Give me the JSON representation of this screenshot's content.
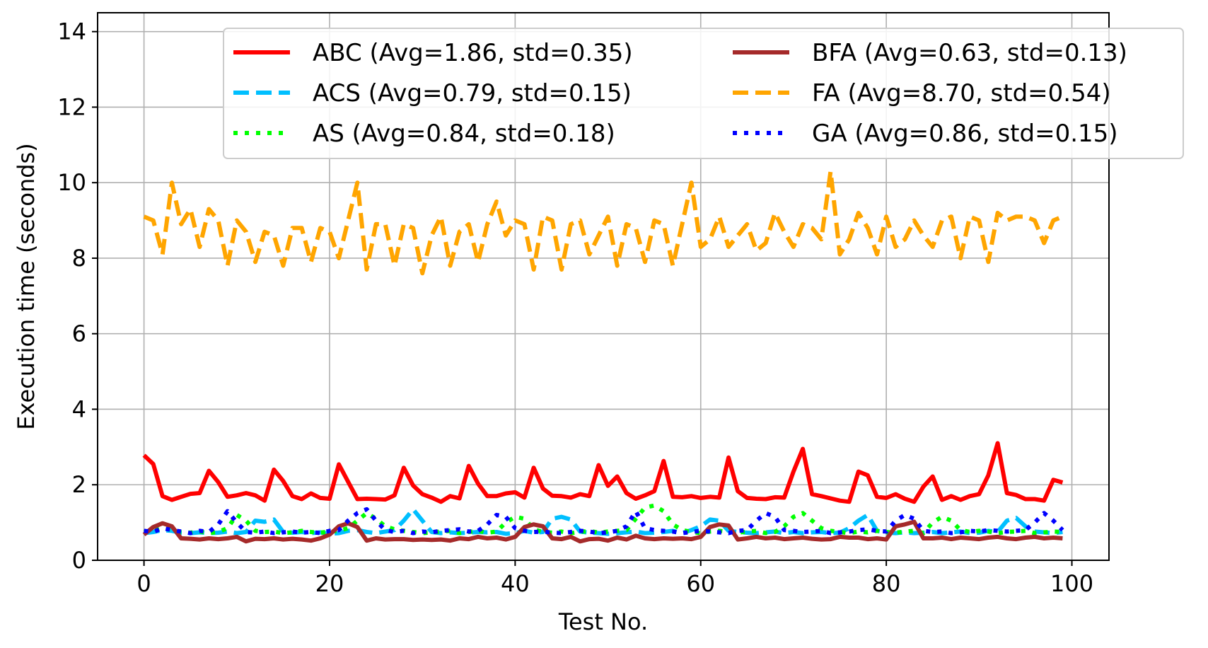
{
  "chart_data": {
    "type": "line",
    "title": "",
    "xlabel": "Test No.",
    "ylabel": "Execution time (seconds)",
    "xlim": [
      -5,
      104
    ],
    "ylim": [
      0,
      14.5
    ],
    "xticks": [
      0,
      20,
      40,
      60,
      80,
      100
    ],
    "yticks": [
      0,
      2,
      4,
      6,
      8,
      10,
      12,
      14
    ],
    "grid": true,
    "legend_position": "top-right",
    "legend_columns": 2,
    "x": [
      0,
      1,
      2,
      3,
      4,
      5,
      6,
      7,
      8,
      9,
      10,
      11,
      12,
      13,
      14,
      15,
      16,
      17,
      18,
      19,
      20,
      21,
      22,
      23,
      24,
      25,
      26,
      27,
      28,
      29,
      30,
      31,
      32,
      33,
      34,
      35,
      36,
      37,
      38,
      39,
      40,
      41,
      42,
      43,
      44,
      45,
      46,
      47,
      48,
      49,
      50,
      51,
      52,
      53,
      54,
      55,
      56,
      57,
      58,
      59,
      60,
      61,
      62,
      63,
      64,
      65,
      66,
      67,
      68,
      69,
      70,
      71,
      72,
      73,
      74,
      75,
      76,
      77,
      78,
      79,
      80,
      81,
      82,
      83,
      84,
      85,
      86,
      87,
      88,
      89,
      90,
      91,
      92,
      93,
      94,
      95,
      96,
      97,
      98,
      99
    ],
    "series": [
      {
        "name": "ABC (Avg=1.86, std=0.35)",
        "color": "#ff0000",
        "style": "solid",
        "values": [
          2.78,
          2.55,
          1.7,
          1.6,
          1.68,
          1.76,
          1.78,
          2.37,
          2.07,
          1.68,
          1.72,
          1.78,
          1.72,
          1.58,
          2.4,
          2.1,
          1.7,
          1.62,
          1.77,
          1.65,
          1.63,
          2.54,
          2.08,
          1.62,
          1.63,
          1.62,
          1.61,
          1.72,
          2.45,
          1.98,
          1.75,
          1.66,
          1.55,
          1.7,
          1.64,
          2.5,
          2.03,
          1.7,
          1.7,
          1.77,
          1.8,
          1.66,
          2.45,
          1.9,
          1.71,
          1.7,
          1.66,
          1.75,
          1.7,
          2.52,
          1.97,
          2.22,
          1.78,
          1.63,
          1.72,
          1.83,
          2.63,
          1.68,
          1.67,
          1.7,
          1.65,
          1.68,
          1.66,
          2.72,
          1.83,
          1.65,
          1.63,
          1.62,
          1.67,
          1.66,
          2.35,
          2.95,
          1.75,
          1.7,
          1.64,
          1.58,
          1.55,
          2.35,
          2.25,
          1.68,
          1.65,
          1.75,
          1.63,
          1.55,
          1.95,
          2.22,
          1.6,
          1.7,
          1.6,
          1.7,
          1.75,
          2.25,
          3.1,
          1.78,
          1.73,
          1.62,
          1.62,
          1.58,
          2.13,
          2.06
        ]
      },
      {
        "name": "ACS (Avg=0.79, std=0.15)",
        "color": "#00bfff",
        "style": "dashed",
        "values": [
          0.72,
          0.75,
          0.8,
          0.78,
          0.73,
          0.72,
          0.74,
          0.72,
          0.73,
          0.76,
          0.72,
          0.75,
          1.05,
          1.02,
          1.08,
          0.75,
          0.73,
          0.75,
          0.72,
          0.74,
          0.7,
          0.72,
          0.78,
          0.8,
          0.75,
          0.72,
          0.76,
          0.8,
          1.05,
          1.35,
          1.05,
          0.75,
          0.72,
          0.74,
          0.72,
          0.73,
          0.75,
          0.74,
          0.75,
          0.7,
          0.72,
          0.78,
          0.73,
          0.75,
          1.1,
          1.15,
          1.08,
          0.76,
          0.73,
          0.72,
          0.7,
          0.72,
          0.74,
          0.76,
          0.72,
          0.73,
          0.75,
          0.78,
          0.72,
          0.8,
          0.9,
          1.08,
          1.05,
          0.78,
          0.75,
          0.73,
          0.72,
          0.74,
          0.76,
          0.72,
          0.75,
          0.72,
          0.74,
          0.75,
          0.72,
          0.73,
          0.85,
          1.05,
          1.2,
          0.78,
          0.73,
          0.72,
          0.74,
          0.72,
          0.73,
          0.75,
          0.72,
          0.74,
          0.76,
          0.72,
          0.73,
          0.78,
          0.75,
          1.05,
          1.12,
          0.9,
          0.76,
          0.74,
          0.72,
          0.75
        ]
      },
      {
        "name": "AS (Avg=0.84, std=0.18)",
        "color": "#00ff00",
        "style": "dotted",
        "values": [
          0.75,
          0.78,
          0.85,
          0.8,
          0.75,
          0.73,
          0.76,
          0.72,
          0.75,
          0.85,
          1.2,
          1.05,
          0.78,
          0.75,
          0.76,
          0.72,
          0.74,
          0.78,
          0.75,
          0.73,
          0.76,
          0.78,
          0.85,
          1.05,
          1.25,
          1.1,
          0.9,
          0.82,
          0.78,
          0.75,
          0.72,
          0.74,
          0.76,
          0.78,
          0.72,
          0.75,
          0.78,
          0.73,
          0.76,
          1.0,
          1.15,
          1.1,
          0.82,
          0.75,
          0.73,
          0.76,
          0.72,
          0.75,
          0.78,
          0.73,
          0.76,
          0.78,
          0.8,
          1.1,
          1.4,
          1.45,
          1.3,
          0.95,
          0.8,
          0.75,
          0.72,
          0.76,
          0.78,
          0.75,
          0.73,
          0.76,
          0.78,
          0.72,
          0.75,
          0.9,
          1.15,
          1.25,
          1.05,
          0.85,
          0.78,
          0.75,
          0.72,
          0.76,
          0.74,
          0.78,
          0.75,
          0.73,
          0.76,
          0.78,
          0.72,
          1.0,
          1.15,
          1.05,
          0.8,
          0.75,
          0.78,
          0.76,
          0.72,
          0.75,
          0.76,
          0.78,
          0.72,
          0.74,
          0.76,
          0.75
        ]
      },
      {
        "name": "BFA (Avg=0.63, std=0.13)",
        "color": "#a52a2a",
        "style": "solid",
        "values": [
          0.68,
          0.88,
          0.98,
          0.9,
          0.58,
          0.57,
          0.55,
          0.58,
          0.56,
          0.58,
          0.62,
          0.5,
          0.57,
          0.56,
          0.58,
          0.55,
          0.57,
          0.55,
          0.52,
          0.58,
          0.68,
          0.9,
          0.98,
          0.88,
          0.52,
          0.58,
          0.55,
          0.56,
          0.56,
          0.54,
          0.55,
          0.54,
          0.55,
          0.52,
          0.58,
          0.56,
          0.62,
          0.58,
          0.6,
          0.55,
          0.62,
          0.88,
          0.95,
          0.9,
          0.58,
          0.56,
          0.62,
          0.5,
          0.56,
          0.57,
          0.52,
          0.6,
          0.55,
          0.65,
          0.58,
          0.56,
          0.58,
          0.57,
          0.58,
          0.56,
          0.62,
          0.88,
          0.95,
          0.92,
          0.55,
          0.58,
          0.62,
          0.58,
          0.6,
          0.56,
          0.58,
          0.6,
          0.57,
          0.55,
          0.56,
          0.62,
          0.6,
          0.6,
          0.56,
          0.58,
          0.55,
          0.9,
          0.95,
          1.02,
          0.58,
          0.58,
          0.6,
          0.56,
          0.6,
          0.58,
          0.56,
          0.6,
          0.62,
          0.58,
          0.56,
          0.6,
          0.62,
          0.58,
          0.6,
          0.58
        ]
      },
      {
        "name": "FA (Avg=8.70, std=0.54)",
        "color": "#ffa500",
        "style": "dashed",
        "values": [
          9.1,
          9.0,
          8.1,
          10.0,
          8.9,
          9.3,
          8.3,
          9.3,
          9.0,
          7.8,
          9.0,
          8.7,
          7.9,
          8.7,
          8.6,
          7.8,
          8.8,
          8.8,
          7.9,
          8.8,
          8.7,
          8.0,
          9.0,
          10.0,
          7.7,
          8.9,
          8.9,
          7.8,
          8.9,
          8.8,
          7.6,
          8.6,
          9.1,
          7.8,
          8.7,
          8.9,
          7.9,
          8.9,
          9.5,
          8.6,
          9.0,
          8.9,
          7.7,
          9.1,
          9.0,
          7.7,
          8.9,
          9.0,
          8.1,
          8.6,
          9.1,
          7.8,
          8.9,
          8.8,
          7.9,
          9.0,
          8.9,
          7.8,
          8.9,
          10.0,
          8.3,
          8.5,
          9.1,
          8.3,
          8.6,
          8.9,
          8.2,
          8.4,
          9.2,
          8.7,
          8.3,
          8.9,
          8.8,
          8.5,
          10.3,
          8.1,
          8.5,
          9.2,
          8.8,
          8.1,
          9.1,
          8.3,
          8.5,
          9.0,
          8.6,
          8.3,
          9.0,
          9.1,
          8.0,
          9.1,
          9.0,
          7.9,
          9.2,
          9.0,
          9.1,
          9.1,
          9.0,
          8.4,
          9.0,
          9.1
        ]
      },
      {
        "name": "GA (Avg=0.86, std=0.15)",
        "color": "#0000ff",
        "style": "dotted",
        "values": [
          0.78,
          0.75,
          0.85,
          0.8,
          0.76,
          0.72,
          0.78,
          0.75,
          0.95,
          1.3,
          1.0,
          0.75,
          0.73,
          0.76,
          0.72,
          0.74,
          0.76,
          0.73,
          0.75,
          0.72,
          0.78,
          0.8,
          1.05,
          1.25,
          1.35,
          1.05,
          0.8,
          0.75,
          0.78,
          0.72,
          0.76,
          0.74,
          0.78,
          0.8,
          0.82,
          0.76,
          0.78,
          0.95,
          1.2,
          1.15,
          0.85,
          0.78,
          0.75,
          0.76,
          0.73,
          0.72,
          0.75,
          0.78,
          0.76,
          0.72,
          0.74,
          0.78,
          0.9,
          1.3,
          0.85,
          0.8,
          0.78,
          0.76,
          0.72,
          0.75,
          0.78,
          0.76,
          0.74,
          0.72,
          0.78,
          0.8,
          1.05,
          1.25,
          1.15,
          0.8,
          0.78,
          0.75,
          0.76,
          0.78,
          0.72,
          0.74,
          0.76,
          0.8,
          0.82,
          0.78,
          0.76,
          1.05,
          1.2,
          1.1,
          0.78,
          0.75,
          0.76,
          0.72,
          0.74,
          0.78,
          0.76,
          0.8,
          0.78,
          0.76,
          0.78,
          0.8,
          1.0,
          1.25,
          1.05,
          0.8
        ]
      }
    ]
  }
}
